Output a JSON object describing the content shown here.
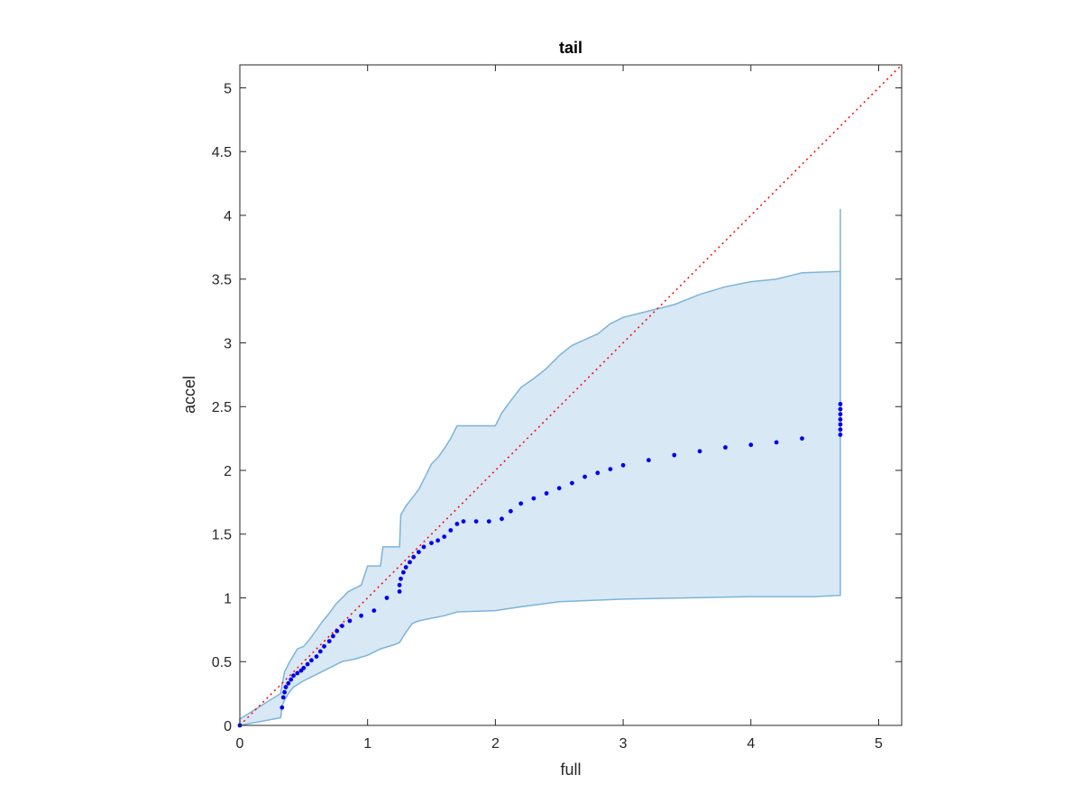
{
  "chart_data": {
    "type": "scatter",
    "title": "tail",
    "xlabel": "full",
    "ylabel": "accel",
    "xlim": [
      0,
      5.18
    ],
    "ylim": [
      0,
      5.18
    ],
    "xticks": [
      0,
      1,
      2,
      3,
      4,
      5
    ],
    "yticks": [
      0,
      0.5,
      1,
      1.5,
      2,
      2.5,
      3,
      3.5,
      4,
      4.5,
      5
    ],
    "xtick_labels": [
      "0",
      "1",
      "2",
      "3",
      "4",
      "5"
    ],
    "ytick_labels": [
      "0",
      "0.5",
      "1",
      "1.5",
      "2",
      "2.5",
      "3",
      "3.5",
      "4",
      "4.5",
      "5"
    ],
    "grid": false,
    "colors": {
      "points": "#0000ee",
      "band_fill": "#d8e8f5",
      "band_edge": "#7db4d8",
      "reference_line": "#ff0000",
      "axes": "#262626"
    },
    "reference_line": {
      "style": "dotted",
      "points": [
        [
          0,
          0
        ],
        [
          5.18,
          5.18
        ]
      ]
    },
    "band": {
      "upper": [
        [
          0,
          0.05
        ],
        [
          0.32,
          0.25
        ],
        [
          0.33,
          0.32
        ],
        [
          0.35,
          0.42
        ],
        [
          0.38,
          0.48
        ],
        [
          0.42,
          0.55
        ],
        [
          0.45,
          0.6
        ],
        [
          0.5,
          0.62
        ],
        [
          0.55,
          0.68
        ],
        [
          0.6,
          0.75
        ],
        [
          0.65,
          0.82
        ],
        [
          0.7,
          0.88
        ],
        [
          0.75,
          0.95
        ],
        [
          0.8,
          1.0
        ],
        [
          0.85,
          1.05
        ],
        [
          0.95,
          1.1
        ],
        [
          1.0,
          1.25
        ],
        [
          1.1,
          1.25
        ],
        [
          1.12,
          1.4
        ],
        [
          1.25,
          1.4
        ],
        [
          1.26,
          1.65
        ],
        [
          1.3,
          1.72
        ],
        [
          1.4,
          1.85
        ],
        [
          1.45,
          1.95
        ],
        [
          1.5,
          2.05
        ],
        [
          1.55,
          2.1
        ],
        [
          1.6,
          2.17
        ],
        [
          1.65,
          2.25
        ],
        [
          1.7,
          2.35
        ],
        [
          2.0,
          2.35
        ],
        [
          2.05,
          2.45
        ],
        [
          2.1,
          2.52
        ],
        [
          2.2,
          2.65
        ],
        [
          2.3,
          2.72
        ],
        [
          2.4,
          2.8
        ],
        [
          2.5,
          2.9
        ],
        [
          2.6,
          2.98
        ],
        [
          2.8,
          3.07
        ],
        [
          2.9,
          3.15
        ],
        [
          3.0,
          3.2
        ],
        [
          3.2,
          3.25
        ],
        [
          3.4,
          3.3
        ],
        [
          3.6,
          3.38
        ],
        [
          3.8,
          3.44
        ],
        [
          4.0,
          3.48
        ],
        [
          4.2,
          3.5
        ],
        [
          4.4,
          3.55
        ],
        [
          4.7,
          3.56
        ],
        [
          4.7,
          4.05
        ]
      ],
      "lower": [
        [
          4.7,
          1.02
        ],
        [
          4.5,
          1.01
        ],
        [
          4.0,
          1.01
        ],
        [
          3.5,
          1.0
        ],
        [
          3.0,
          0.99
        ],
        [
          2.5,
          0.97
        ],
        [
          2.2,
          0.93
        ],
        [
          2.0,
          0.9
        ],
        [
          1.7,
          0.89
        ],
        [
          1.6,
          0.86
        ],
        [
          1.5,
          0.84
        ],
        [
          1.4,
          0.82
        ],
        [
          1.35,
          0.8
        ],
        [
          1.3,
          0.73
        ],
        [
          1.25,
          0.65
        ],
        [
          1.2,
          0.63
        ],
        [
          1.1,
          0.6
        ],
        [
          1.0,
          0.55
        ],
        [
          0.9,
          0.52
        ],
        [
          0.8,
          0.5
        ],
        [
          0.7,
          0.45
        ],
        [
          0.6,
          0.4
        ],
        [
          0.5,
          0.35
        ],
        [
          0.42,
          0.3
        ],
        [
          0.38,
          0.25
        ],
        [
          0.35,
          0.2
        ],
        [
          0.33,
          0.15
        ],
        [
          0.32,
          0.06
        ],
        [
          0,
          0
        ]
      ]
    },
    "series": [
      {
        "points": [
          [
            0,
            0
          ],
          [
            0.33,
            0.14
          ],
          [
            0.34,
            0.22
          ],
          [
            0.35,
            0.26
          ],
          [
            0.36,
            0.3
          ],
          [
            0.38,
            0.33
          ],
          [
            0.4,
            0.36
          ],
          [
            0.42,
            0.39
          ],
          [
            0.45,
            0.41
          ],
          [
            0.48,
            0.43
          ],
          [
            0.5,
            0.45
          ],
          [
            0.53,
            0.48
          ],
          [
            0.56,
            0.51
          ],
          [
            0.6,
            0.54
          ],
          [
            0.63,
            0.58
          ],
          [
            0.66,
            0.62
          ],
          [
            0.7,
            0.66
          ],
          [
            0.73,
            0.7
          ],
          [
            0.76,
            0.74
          ],
          [
            0.8,
            0.78
          ],
          [
            0.86,
            0.82
          ],
          [
            0.95,
            0.86
          ],
          [
            1.05,
            0.9
          ],
          [
            1.15,
            1.0
          ],
          [
            1.25,
            1.05
          ],
          [
            1.25,
            1.1
          ],
          [
            1.26,
            1.15
          ],
          [
            1.28,
            1.2
          ],
          [
            1.3,
            1.24
          ],
          [
            1.33,
            1.28
          ],
          [
            1.36,
            1.32
          ],
          [
            1.4,
            1.36
          ],
          [
            1.44,
            1.4
          ],
          [
            1.5,
            1.43
          ],
          [
            1.55,
            1.45
          ],
          [
            1.6,
            1.48
          ],
          [
            1.65,
            1.53
          ],
          [
            1.7,
            1.58
          ],
          [
            1.75,
            1.6
          ],
          [
            1.85,
            1.6
          ],
          [
            1.95,
            1.6
          ],
          [
            2.05,
            1.62
          ],
          [
            2.12,
            1.68
          ],
          [
            2.2,
            1.74
          ],
          [
            2.3,
            1.78
          ],
          [
            2.4,
            1.82
          ],
          [
            2.5,
            1.86
          ],
          [
            2.6,
            1.9
          ],
          [
            2.7,
            1.95
          ],
          [
            2.8,
            1.98
          ],
          [
            2.9,
            2.01
          ],
          [
            3.0,
            2.04
          ],
          [
            3.2,
            2.08
          ],
          [
            3.4,
            2.12
          ],
          [
            3.6,
            2.15
          ],
          [
            3.8,
            2.18
          ],
          [
            4.0,
            2.2
          ],
          [
            4.2,
            2.22
          ],
          [
            4.4,
            2.25
          ],
          [
            4.7,
            2.28
          ],
          [
            4.7,
            2.32
          ],
          [
            4.7,
            2.36
          ],
          [
            4.7,
            2.4
          ],
          [
            4.7,
            2.44
          ],
          [
            4.7,
            2.48
          ],
          [
            4.7,
            2.52
          ]
        ]
      }
    ]
  }
}
